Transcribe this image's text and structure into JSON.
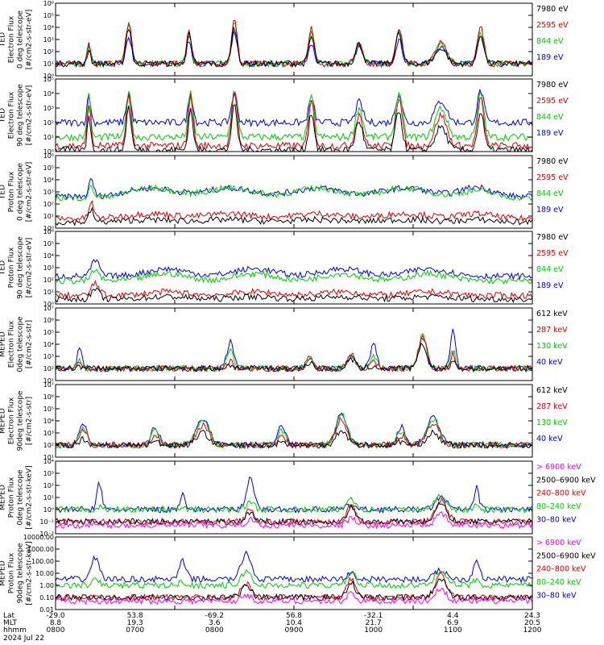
{
  "chart_data": [
    {
      "type": "line",
      "title": [
        "TED",
        "Electron Flux",
        "0 deg telescope",
        "[#/cm2-s-str-eV]"
      ],
      "yscale": "log",
      "ylim_exp": [
        0,
        6
      ],
      "ytick_labels": [
        "10⁰",
        "10¹",
        "10²",
        "10³",
        "10⁴",
        "10⁵",
        "10⁶"
      ],
      "legend": [
        {
          "label": "7980 eV",
          "color": "#000000"
        },
        {
          "label": "2595 eV",
          "color": "#dd0000"
        },
        {
          "label": "844 eV",
          "color": "#00cc00"
        },
        {
          "label": "189 eV",
          "color": "#0000dd"
        }
      ],
      "baseline": [
        1.0,
        1.0,
        1.0,
        1.0
      ],
      "bursts": [
        {
          "c": 0.42,
          "w": 0.022,
          "a": [
            1.2,
            1.6,
            1.7,
            1.6
          ]
        },
        {
          "c": 0.92,
          "w": 0.035,
          "a": [
            3.0,
            3.5,
            3.4,
            2.2
          ]
        },
        {
          "c": 1.68,
          "w": 0.03,
          "a": [
            2.4,
            2.8,
            2.5,
            2.0
          ]
        },
        {
          "c": 2.25,
          "w": 0.035,
          "a": [
            3.0,
            3.6,
            3.5,
            2.6
          ]
        },
        {
          "c": 3.22,
          "w": 0.035,
          "a": [
            2.2,
            3.0,
            2.6,
            1.6
          ]
        },
        {
          "c": 3.82,
          "w": 0.045,
          "a": [
            1.6,
            1.8,
            1.6,
            1.5
          ]
        },
        {
          "c": 4.32,
          "w": 0.04,
          "a": [
            2.5,
            3.0,
            2.8,
            2.0
          ]
        },
        {
          "c": 4.85,
          "w": 0.07,
          "a": [
            1.3,
            1.7,
            1.6,
            1.4
          ]
        },
        {
          "c": 5.35,
          "w": 0.04,
          "a": [
            2.4,
            3.0,
            2.6,
            2.3
          ]
        }
      ]
    },
    {
      "type": "line",
      "title": [
        "TED",
        "Electron Flux",
        "90 deg telescope",
        "[#/cm2-s-str-eV]"
      ],
      "yscale": "log",
      "ylim_exp": [
        0,
        5
      ],
      "ytick_labels": [
        "10⁰",
        "10¹",
        "10²",
        "10³",
        "10⁴",
        "10⁵"
      ],
      "legend": [
        {
          "label": "7980 eV",
          "color": "#000000"
        },
        {
          "label": "2595 eV",
          "color": "#dd0000"
        },
        {
          "label": "844 eV",
          "color": "#00cc00"
        },
        {
          "label": "189 eV",
          "color": "#0000dd"
        }
      ],
      "baseline": [
        0.1,
        0.4,
        1.0,
        2.0
      ],
      "bursts": [
        {
          "c": 0.42,
          "w": 0.022,
          "a": [
            2.5,
            3.0,
            2.8,
            2.0
          ]
        },
        {
          "c": 0.92,
          "w": 0.03,
          "a": [
            3.0,
            3.5,
            3.3,
            2.0
          ]
        },
        {
          "c": 1.7,
          "w": 0.03,
          "a": [
            2.8,
            3.4,
            3.0,
            2.0
          ]
        },
        {
          "c": 2.25,
          "w": 0.035,
          "a": [
            3.0,
            3.5,
            3.2,
            2.0
          ]
        },
        {
          "c": 3.22,
          "w": 0.035,
          "a": [
            2.6,
            3.0,
            2.7,
            1.6
          ]
        },
        {
          "c": 3.82,
          "w": 0.045,
          "a": [
            2.0,
            2.2,
            2.0,
            1.4
          ]
        },
        {
          "c": 4.32,
          "w": 0.04,
          "a": [
            2.8,
            3.4,
            3.1,
            2.0
          ]
        },
        {
          "c": 4.85,
          "w": 0.07,
          "a": [
            1.6,
            2.1,
            2.0,
            1.5
          ]
        },
        {
          "c": 5.35,
          "w": 0.04,
          "a": [
            2.6,
            3.2,
            3.0,
            2.2
          ]
        }
      ]
    },
    {
      "type": "line",
      "title": [
        "TED",
        "Proton Flux",
        "0 deg telescope",
        "[#/cm2-s-str-eV]"
      ],
      "yscale": "log",
      "ylim_exp": [
        0,
        6
      ],
      "ytick_labels": [
        "10⁰",
        "10¹",
        "10²",
        "10³",
        "10⁴",
        "10⁵",
        "10⁶"
      ],
      "legend": [
        {
          "label": "7980 eV",
          "color": "#000000"
        },
        {
          "label": "2595 eV",
          "color": "#dd0000"
        },
        {
          "label": "844 eV",
          "color": "#00cc00"
        },
        {
          "label": "189 eV",
          "color": "#0000dd"
        }
      ],
      "baseline": [
        0.5,
        0.8,
        2.5,
        2.6
      ],
      "bursts": [
        {
          "c": 0.45,
          "w": 0.03,
          "a": [
            1.0,
            1.3,
            0.9,
            1.4
          ]
        },
        {
          "c": 1.2,
          "w": 0.3,
          "a": [
            0.2,
            0.4,
            0.8,
            0.7
          ]
        },
        {
          "c": 2.2,
          "w": 0.3,
          "a": [
            0.2,
            0.4,
            0.8,
            0.7
          ]
        },
        {
          "c": 3.3,
          "w": 0.3,
          "a": [
            0.2,
            0.4,
            0.8,
            0.7
          ]
        },
        {
          "c": 4.4,
          "w": 0.3,
          "a": [
            0.2,
            0.4,
            0.8,
            0.7
          ]
        },
        {
          "c": 5.3,
          "w": 0.2,
          "a": [
            0.2,
            0.4,
            0.6,
            0.8
          ]
        }
      ]
    },
    {
      "type": "line",
      "title": [
        "TED",
        "Proton Flux",
        "90 deg telescope",
        "[#/cm2-s-str-eV]"
      ],
      "yscale": "log",
      "ylim_exp": [
        0,
        6
      ],
      "ytick_labels": [
        "10⁰",
        "10¹",
        "10²",
        "10³",
        "10⁴",
        "10⁵",
        "10⁶"
      ],
      "legend": [
        {
          "label": "7980 eV",
          "color": "#000000"
        },
        {
          "label": "2595 eV",
          "color": "#dd0000"
        },
        {
          "label": "844 eV",
          "color": "#00cc00"
        },
        {
          "label": "189 eV",
          "color": "#0000dd"
        }
      ],
      "baseline": [
        0.4,
        0.7,
        1.9,
        2.3
      ],
      "bursts": [
        {
          "c": 0.5,
          "w": 0.05,
          "a": [
            0.8,
            1.0,
            0.9,
            1.3
          ]
        },
        {
          "c": 1.4,
          "w": 0.25,
          "a": [
            0.2,
            0.3,
            0.6,
            0.6
          ]
        },
        {
          "c": 2.5,
          "w": 0.25,
          "a": [
            0.2,
            0.3,
            0.6,
            0.6
          ]
        },
        {
          "c": 3.6,
          "w": 0.25,
          "a": [
            0.2,
            0.3,
            0.6,
            0.6
          ]
        },
        {
          "c": 4.7,
          "w": 0.25,
          "a": [
            0.2,
            0.3,
            0.6,
            0.6
          ]
        }
      ]
    },
    {
      "type": "line",
      "title": [
        "MEPED",
        "Electron Flux",
        "0deg telescope",
        "[#/cm2-s-str]"
      ],
      "yscale": "log",
      "ylim_exp": [
        1,
        7
      ],
      "ytick_labels": [
        "10¹",
        "10²",
        "10³",
        "10⁴",
        "10⁵",
        "10⁶",
        "10⁷"
      ],
      "legend": [
        {
          "label": "612 keV",
          "color": "#000000"
        },
        {
          "label": "287 keV",
          "color": "#dd0000"
        },
        {
          "label": "130 keV",
          "color": "#00cc00"
        },
        {
          "label": "40 keV",
          "color": "#0000dd"
        }
      ],
      "baseline": [
        2.0,
        2.0,
        2.0,
        2.0
      ],
      "bursts": [
        {
          "c": 0.3,
          "w": 0.03,
          "a": [
            0.2,
            0.4,
            0.6,
            1.6
          ]
        },
        {
          "c": 2.2,
          "w": 0.04,
          "a": [
            0.3,
            0.7,
            1.5,
            2.3
          ]
        },
        {
          "c": 3.2,
          "w": 0.04,
          "a": [
            0.5,
            0.9,
            0.8,
            1.0
          ]
        },
        {
          "c": 3.72,
          "w": 0.05,
          "a": [
            0.8,
            1.2,
            1.0,
            1.0
          ]
        },
        {
          "c": 4.0,
          "w": 0.04,
          "a": [
            0.2,
            0.5,
            1.0,
            2.0
          ]
        },
        {
          "c": 4.62,
          "w": 0.05,
          "a": [
            2.0,
            2.7,
            2.8,
            2.6
          ]
        },
        {
          "c": 5.0,
          "w": 0.03,
          "a": [
            0.5,
            1.3,
            1.5,
            3.5
          ]
        }
      ]
    },
    {
      "type": "line",
      "title": [
        "MEPED",
        "Electron Flux",
        "90deg telescope",
        "[#/cm2-s-str]"
      ],
      "yscale": "log",
      "ylim_exp": [
        1,
        7
      ],
      "ytick_labels": [
        "10¹",
        "10²",
        "10³",
        "10⁴",
        "10⁵",
        "10⁶",
        "10⁷"
      ],
      "legend": [
        {
          "label": "612 keV",
          "color": "#000000"
        },
        {
          "label": "287 keV",
          "color": "#dd0000"
        },
        {
          "label": "130 keV",
          "color": "#00cc00"
        },
        {
          "label": "40 keV",
          "color": "#0000dd"
        }
      ],
      "baseline": [
        2.0,
        2.0,
        2.0,
        2.0
      ],
      "bursts": [
        {
          "c": 0.35,
          "w": 0.05,
          "a": [
            0.5,
            1.2,
            1.5,
            1.8
          ]
        },
        {
          "c": 1.25,
          "w": 0.05,
          "a": [
            0.3,
            0.8,
            1.2,
            1.5
          ]
        },
        {
          "c": 1.85,
          "w": 0.08,
          "a": [
            1.0,
            1.6,
            2.0,
            2.2
          ]
        },
        {
          "c": 2.85,
          "w": 0.05,
          "a": [
            0.3,
            0.8,
            1.2,
            1.6
          ]
        },
        {
          "c": 3.6,
          "w": 0.07,
          "a": [
            1.2,
            2.1,
            2.5,
            2.6
          ]
        },
        {
          "c": 4.35,
          "w": 0.05,
          "a": [
            0.3,
            0.8,
            1.1,
            1.5
          ]
        },
        {
          "c": 4.75,
          "w": 0.08,
          "a": [
            1.0,
            1.8,
            2.2,
            2.3
          ]
        }
      ]
    },
    {
      "type": "line",
      "title": [
        "MEPED",
        "Proton Flux",
        "0deg telescope",
        "[#/cm2-s-str-keV]"
      ],
      "yscale": "log",
      "ylim_exp": [
        -2,
        4
      ],
      "ytick_labels": [
        "10⁻²",
        "10⁻¹",
        "10⁰",
        "10¹",
        "10²",
        "10³",
        "10⁴"
      ],
      "legend": [
        {
          "label": "> 6900 keV",
          "color": "#ff00ff"
        },
        {
          "label": "2500–6900 keV",
          "color": "#000000"
        },
        {
          "label": "240–800 keV",
          "color": "#dd0000"
        },
        {
          "label": "80–240 keV",
          "color": "#00cc00"
        },
        {
          "label": "30–80 keV",
          "color": "#0000dd"
        }
      ],
      "baseline": [
        -1.3,
        -1.0,
        -1.0,
        0.0,
        0.0
      ],
      "bursts": [
        {
          "c": 0.55,
          "w": 0.03,
          "a": [
            0.0,
            0.0,
            0.0,
            0.2,
            2.2
          ]
        },
        {
          "c": 1.6,
          "w": 0.03,
          "a": [
            0.0,
            0.0,
            0.0,
            0.1,
            1.5
          ]
        },
        {
          "c": 2.45,
          "w": 0.05,
          "a": [
            0.5,
            0.8,
            1.0,
            0.6,
            2.6
          ]
        },
        {
          "c": 3.72,
          "w": 0.05,
          "a": [
            0.6,
            1.2,
            1.5,
            1.0,
            0.4
          ]
        },
        {
          "c": 4.85,
          "w": 0.07,
          "a": [
            0.9,
            1.5,
            1.8,
            1.2,
            1.0
          ]
        },
        {
          "c": 5.3,
          "w": 0.03,
          "a": [
            0.0,
            0.0,
            0.0,
            0.3,
            1.8
          ]
        }
      ]
    },
    {
      "type": "line",
      "title": [
        "MEPED",
        "Proton Flux",
        "90deg telescope",
        "[#/cm2-s-str-keV]"
      ],
      "yscale": "log",
      "ylim_exp": [
        -2,
        4
      ],
      "ytick_labels": [
        "0.01",
        "0.10",
        "1.00",
        "10.00",
        "100.00",
        "1000.00",
        "10000.00"
      ],
      "legend": [
        {
          "label": "> 6900 keV",
          "color": "#ff00ff"
        },
        {
          "label": "2500–6900 keV",
          "color": "#000000"
        },
        {
          "label": "240–800 keV",
          "color": "#dd0000"
        },
        {
          "label": "80–240 keV",
          "color": "#00cc00"
        },
        {
          "label": "30–80 keV",
          "color": "#0000dd"
        }
      ],
      "baseline": [
        -1.3,
        -1.0,
        -1.0,
        0.0,
        0.5
      ],
      "bursts": [
        {
          "c": 0.5,
          "w": 0.05,
          "a": [
            0.0,
            0.0,
            0.0,
            0.4,
            1.8
          ]
        },
        {
          "c": 1.6,
          "w": 0.04,
          "a": [
            0.0,
            0.0,
            0.0,
            0.3,
            1.5
          ]
        },
        {
          "c": 2.4,
          "w": 0.06,
          "a": [
            0.5,
            0.9,
            1.2,
            1.2,
            2.2
          ]
        },
        {
          "c": 3.72,
          "w": 0.05,
          "a": [
            0.7,
            1.3,
            1.6,
            1.1,
            0.5
          ]
        },
        {
          "c": 4.85,
          "w": 0.07,
          "a": [
            1.0,
            1.6,
            1.9,
            1.3,
            0.8
          ]
        },
        {
          "c": 5.3,
          "w": 0.04,
          "a": [
            0.0,
            0.0,
            0.0,
            0.5,
            1.6
          ]
        }
      ]
    }
  ],
  "x_axis": {
    "hours": [
      8,
      12
    ],
    "tick_hours": [
      8,
      9,
      10,
      11,
      12
    ],
    "rows": [
      {
        "label": "Lat",
        "values": [
          "-29.0",
          "53.8",
          "-69.2",
          "56.8",
          "-32.1",
          "4.4",
          "24.3"
        ]
      },
      {
        "label": "MLT",
        "values": [
          "8.8",
          "19.3",
          "3.6",
          "10.4",
          "21.7",
          "6.9",
          "20.5"
        ]
      },
      {
        "label": "hhmm",
        "values": [
          "0800",
          "0700",
          "0800",
          "0900",
          "1000",
          "1100",
          "1200"
        ]
      }
    ],
    "date": "2024 Jul 22"
  }
}
